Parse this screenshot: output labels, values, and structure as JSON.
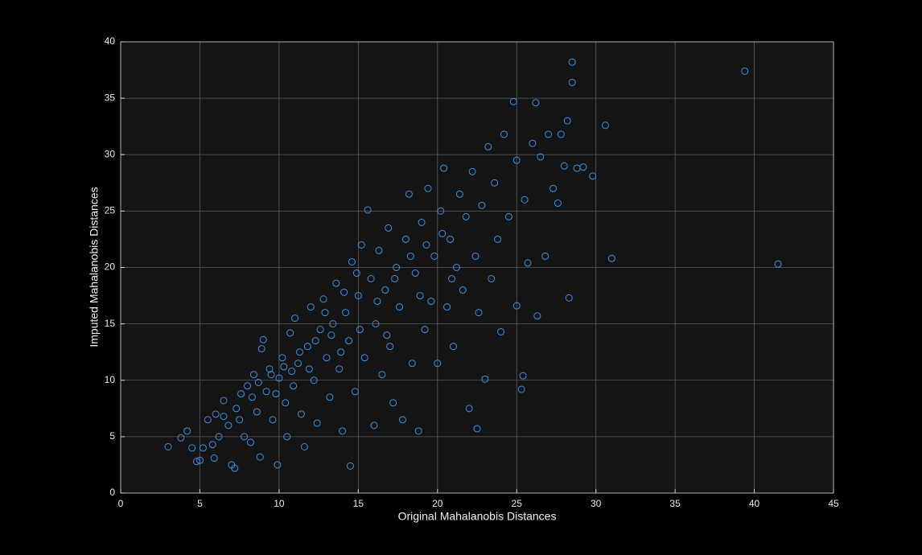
{
  "chart_data": {
    "type": "scatter",
    "xlabel": "Original Mahalanobis Distances",
    "ylabel": "Imputed Mahalanobis Distances",
    "color": "#3d8fdc",
    "grid": true,
    "xlim": [
      0,
      45
    ],
    "xticks": [
      0,
      5,
      10,
      15,
      20,
      25,
      30,
      35,
      40,
      45
    ],
    "ylim": [
      0,
      40
    ],
    "yticks": [
      0,
      5,
      10,
      15,
      20,
      25,
      30,
      35,
      40
    ],
    "x": [
      3.0,
      3.8,
      4.2,
      4.5,
      4.8,
      5.0,
      5.2,
      5.5,
      5.8,
      5.9,
      6.0,
      6.2,
      6.5,
      6.8,
      7.0,
      7.2,
      7.3,
      7.6,
      7.8,
      8.0,
      8.2,
      8.4,
      8.6,
      8.8,
      8.9,
      9.0,
      9.2,
      9.4,
      9.6,
      9.9,
      10.0,
      10.2,
      10.4,
      10.5,
      10.7,
      10.9,
      11.0,
      11.2,
      11.4,
      11.6,
      11.8,
      12.0,
      12.2,
      12.4,
      12.6,
      12.8,
      13.0,
      13.2,
      13.4,
      13.6,
      13.8,
      14.0,
      14.2,
      14.4,
      14.5,
      14.6,
      14.8,
      15.0,
      15.2,
      15.4,
      15.6,
      15.8,
      16.0,
      16.1,
      16.3,
      16.5,
      16.7,
      16.9,
      17.0,
      17.2,
      17.4,
      17.6,
      17.8,
      18.0,
      18.2,
      18.4,
      18.6,
      18.8,
      19.0,
      19.2,
      19.4,
      19.6,
      19.8,
      20.0,
      20.2,
      20.4,
      20.6,
      20.8,
      21.0,
      21.2,
      21.4,
      21.6,
      21.8,
      22.0,
      22.2,
      22.4,
      22.5,
      22.6,
      22.8,
      23.0,
      23.2,
      23.4,
      23.6,
      23.8,
      24.0,
      24.2,
      24.5,
      24.8,
      25.0,
      25.0,
      25.3,
      25.4,
      25.5,
      25.7,
      26.0,
      26.2,
      26.3,
      26.5,
      26.8,
      27.0,
      27.3,
      27.6,
      27.8,
      28.0,
      28.2,
      28.3,
      28.5,
      28.5,
      28.8,
      29.2,
      29.8,
      30.6,
      31.0,
      39.4,
      41.5,
      6.5,
      7.5,
      8.3,
      9.5,
      10.3,
      11.3,
      12.3,
      13.3,
      9.8,
      8.7,
      10.8,
      11.9,
      12.9,
      14.1,
      15.1,
      16.2,
      17.3,
      18.3,
      19.3,
      20.3,
      14.9,
      13.9,
      16.8,
      18.9,
      20.9
    ],
    "values": [
      4.1,
      4.9,
      5.5,
      4.0,
      2.8,
      2.9,
      4.0,
      6.5,
      4.3,
      3.1,
      7.0,
      5.0,
      8.2,
      6.0,
      2.5,
      2.2,
      7.5,
      8.8,
      5.0,
      9.5,
      4.5,
      10.5,
      7.2,
      3.2,
      12.8,
      13.6,
      9.0,
      11.0,
      6.5,
      2.5,
      10.2,
      12.0,
      8.0,
      5.0,
      14.2,
      9.5,
      15.5,
      11.5,
      7.0,
      4.1,
      13.0,
      16.5,
      10.0,
      6.2,
      14.5,
      17.2,
      12.0,
      8.5,
      15.0,
      18.6,
      11.0,
      5.5,
      16.0,
      13.5,
      2.4,
      20.5,
      9.0,
      17.5,
      22.0,
      12.0,
      25.1,
      19.0,
      6.0,
      15.0,
      21.5,
      10.5,
      18.0,
      23.5,
      13.0,
      8.0,
      20.0,
      16.5,
      6.5,
      22.5,
      26.5,
      11.5,
      19.5,
      5.5,
      24.0,
      14.5,
      27.0,
      17.0,
      21.0,
      11.5,
      25.0,
      28.8,
      16.5,
      22.5,
      13.0,
      20.0,
      26.5,
      18.0,
      24.5,
      7.5,
      28.5,
      21.0,
      5.7,
      16.0,
      25.5,
      10.1,
      30.7,
      19.0,
      27.5,
      22.5,
      14.3,
      31.8,
      24.5,
      34.7,
      29.5,
      16.6,
      9.2,
      10.4,
      26.0,
      20.4,
      31.0,
      34.6,
      15.7,
      29.8,
      21.0,
      31.8,
      27.0,
      25.7,
      31.8,
      29.0,
      33.0,
      17.3,
      38.2,
      36.4,
      28.8,
      28.9,
      28.1,
      32.6,
      20.8,
      37.4,
      20.3,
      6.8,
      6.5,
      8.5,
      10.5,
      11.2,
      12.5,
      13.5,
      14.0,
      8.8,
      9.8,
      10.8,
      11.0,
      16.0,
      17.8,
      14.5,
      17.0,
      19.0,
      21.0,
      22.0,
      23.0,
      19.5,
      12.5,
      14.0,
      17.5,
      19.0
    ]
  }
}
